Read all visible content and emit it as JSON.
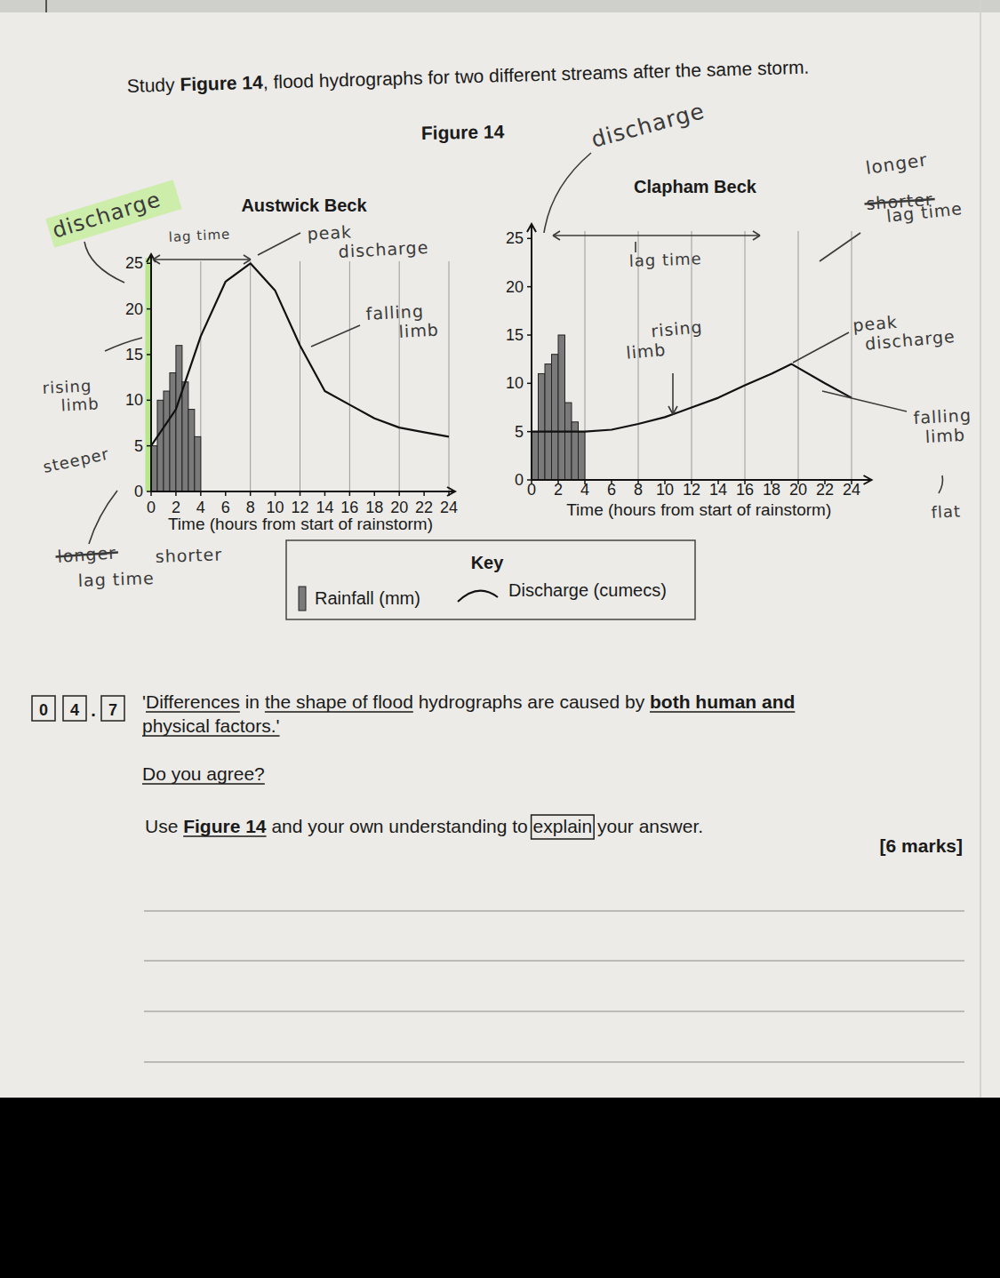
{
  "page": {
    "intro": [
      "Study ",
      "Figure 14",
      ", flood hydrographs for two different streams after the same storm."
    ],
    "figure_title": "Figure 14",
    "key": {
      "title": "Key",
      "items": [
        {
          "label": "Rainfall (mm)",
          "type": "bar"
        },
        {
          "label": "Discharge (cumecs)",
          "type": "line"
        }
      ]
    },
    "question": {
      "number": [
        "0",
        "4",
        ".",
        "7"
      ],
      "lines": [
        [
          "'",
          "Differences",
          " in ",
          "the shape of flood",
          " hydrographs are caused by ",
          "both human and"
        ],
        [
          "physical factors.'"
        ]
      ],
      "prompt": "Do you agree?",
      "instruction": [
        "Use ",
        "Figure 14",
        " and your own understanding to ",
        "explain",
        " your answer."
      ],
      "marks": "[6 marks]"
    },
    "handwriting": [
      "discharge",
      "lag time",
      "peak\ndischarge",
      "falling\nlimb",
      "rising\nlimb",
      "steeper",
      "shorter",
      "lag time",
      "discharge",
      "longer",
      "lag time",
      "lag time",
      "rising\nlimb",
      "peak\ndischarge",
      "falling\nlimb",
      "flat"
    ],
    "crossed_out": [
      "longer",
      "shorter"
    ]
  },
  "chart_data": [
    {
      "type": "line",
      "title": "Austwick Beck",
      "x_label": "Time (hours from start of rainstorm)",
      "xlim": [
        0,
        24.5
      ],
      "xticks": [
        0,
        2,
        4,
        6,
        8,
        10,
        12,
        14,
        16,
        18,
        20,
        22,
        24
      ],
      "ylim": [
        0,
        26
      ],
      "yticks": [
        0,
        5,
        10,
        15,
        20,
        25
      ],
      "grid": true,
      "series": [
        {
          "type": "bar",
          "color": "#7a7a7a",
          "bins": [
            0,
            0.5,
            1,
            1.5,
            2,
            2.5,
            3,
            3.5,
            4
          ],
          "values": [
            5,
            10,
            11,
            13,
            16,
            12,
            9,
            6
          ]
        },
        {
          "type": "line",
          "color": "#111111",
          "x": [
            0,
            2,
            4,
            6,
            8,
            10,
            12,
            14,
            16,
            18,
            20,
            22,
            24
          ],
          "values": [
            5,
            9,
            17,
            23,
            25,
            22,
            16,
            11,
            9.5,
            8,
            7,
            6.5,
            6
          ]
        }
      ]
    },
    {
      "type": "line",
      "title": "Clapham Beck",
      "x_label": "Time (hours from start of rainstorm)",
      "xlim": [
        0,
        25.5
      ],
      "xticks": [
        0,
        2,
        4,
        6,
        8,
        10,
        12,
        14,
        16,
        18,
        20,
        22,
        24
      ],
      "ylim": [
        0,
        26.5
      ],
      "yticks": [
        0,
        5,
        10,
        15,
        20,
        25
      ],
      "grid": true,
      "series": [
        {
          "type": "bar",
          "color": "#7a7a7a",
          "bins": [
            0,
            0.5,
            1,
            1.5,
            2,
            2.5,
            3,
            3.5,
            4
          ],
          "values": [
            5,
            11,
            12,
            13,
            15,
            8,
            6,
            5
          ]
        },
        {
          "type": "line",
          "color": "#111111",
          "x": [
            0,
            2,
            4,
            6,
            8,
            10,
            12,
            14,
            16,
            18,
            19.5,
            22,
            24
          ],
          "values": [
            5,
            5,
            5,
            5.2,
            5.8,
            6.5,
            7.5,
            8.5,
            9.8,
            11,
            12,
            10,
            8.5
          ]
        }
      ]
    }
  ]
}
